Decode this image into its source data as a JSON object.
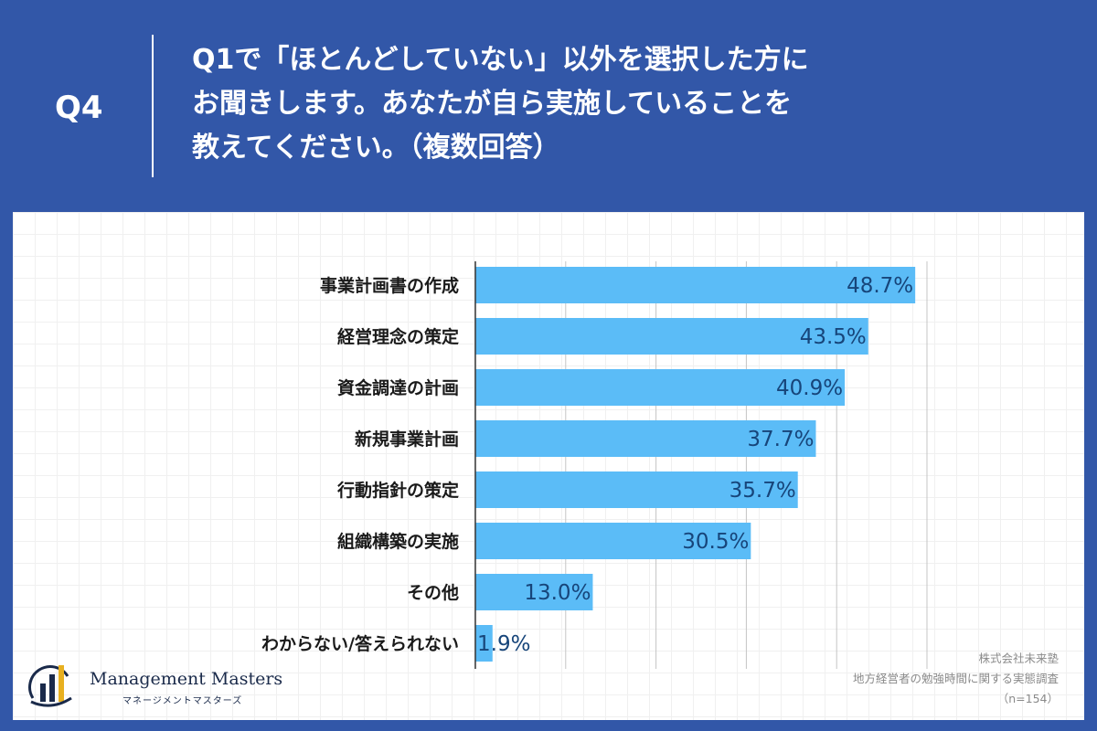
{
  "header": {
    "question_number": "Q4",
    "question_lines": [
      "Q1で「ほとんどしていない」以外を選択した方に",
      "お聞きします。あなたが自ら実施していることを",
      "教えてください。（複数回答）"
    ]
  },
  "chart_data": {
    "type": "bar",
    "orientation": "horizontal",
    "categories": [
      "事業計画書の作成",
      "経営理念の策定",
      "資金調達の計画",
      "新規事業計画",
      "行動指針の策定",
      "組織構築の実施",
      "その他",
      "わからない/答えられない"
    ],
    "values": [
      48.7,
      43.5,
      40.9,
      37.7,
      35.7,
      30.5,
      13.0,
      1.9
    ],
    "value_labels": [
      "48.7%",
      "43.5%",
      "40.9%",
      "37.7%",
      "35.7%",
      "30.5%",
      "13.0%",
      "1.9%"
    ],
    "xlim": [
      0,
      50
    ],
    "grid": true,
    "bar_color": "#5bbcf7"
  },
  "logo": {
    "title": "Management Masters",
    "subtitle": "マネージメントマスターズ"
  },
  "source": {
    "company": "株式会社未来塾",
    "survey": "地方経営者の勉強時間に関する実態調査",
    "sample": "（n=154）"
  }
}
